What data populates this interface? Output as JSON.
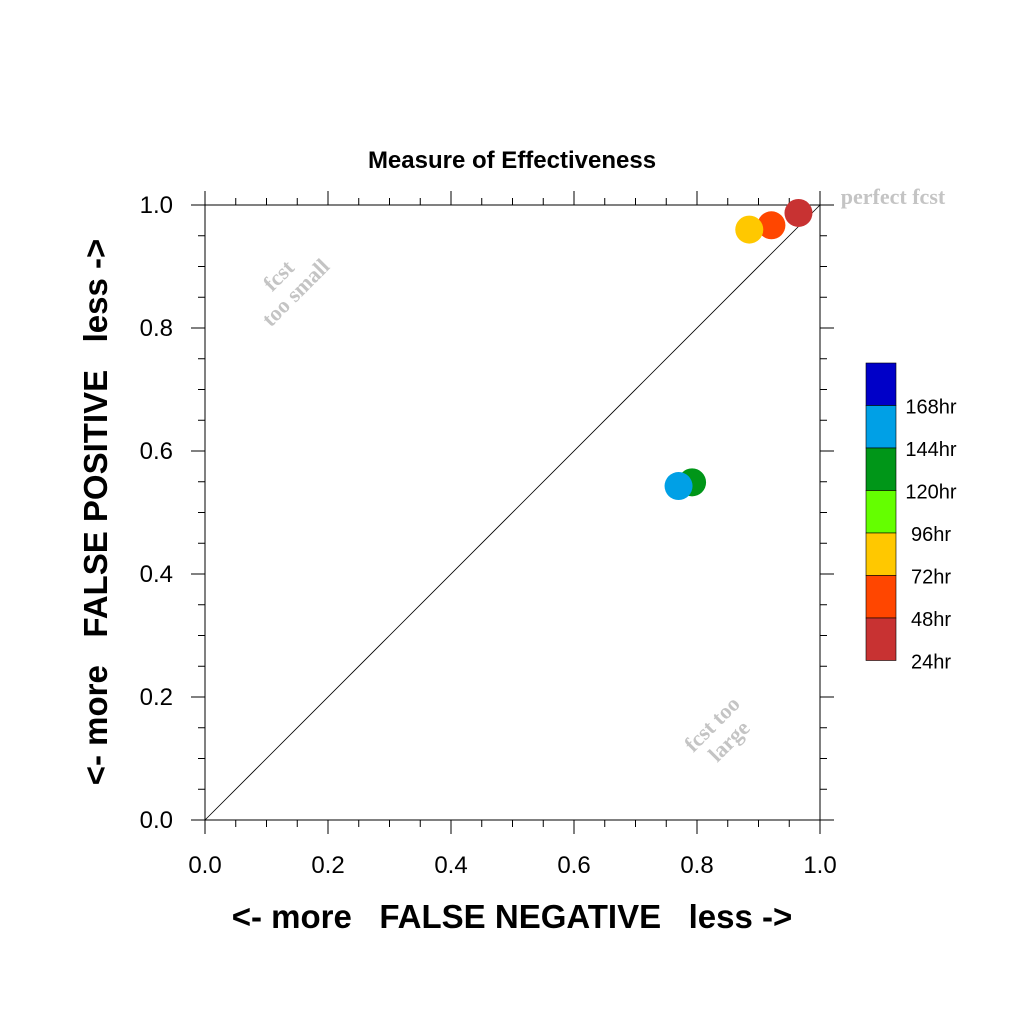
{
  "chart_data": {
    "type": "scatter",
    "title": "Measure of Effectiveness",
    "xlabel": "<- more   FALSE NEGATIVE   less ->",
    "ylabel": "<- more   FALSE POSITIVE   less ->",
    "xlim": [
      0.0,
      1.0
    ],
    "ylim": [
      0.0,
      1.0
    ],
    "x_ticks": [
      "0.0",
      "0.2",
      "0.4",
      "0.6",
      "0.8",
      "1.0"
    ],
    "y_ticks": [
      "0.0",
      "0.2",
      "0.4",
      "0.6",
      "0.8",
      "1.0"
    ],
    "grid": false,
    "reference_line": "diagonal",
    "annotations": {
      "perfect": "perfect fcst",
      "too_small_1": "fcst",
      "too_small_2": "too small",
      "too_large_1": "fcst too",
      "too_large_2": "large"
    },
    "legend": {
      "placement": "right",
      "entries": [
        {
          "label": "168hr",
          "color": "#0000c8"
        },
        {
          "label": "144hr",
          "color": "#00a0e6"
        },
        {
          "label": "120hr",
          "color": "#009618"
        },
        {
          "label": "96hr",
          "color": "#64ff00"
        },
        {
          "label": "72hr",
          "color": "#ffc800"
        },
        {
          "label": "48hr",
          "color": "#ff4600"
        },
        {
          "label": "24hr",
          "color": "#c83232"
        }
      ]
    },
    "points": [
      {
        "label": "24hr",
        "x": 0.965,
        "y": 0.987,
        "color": "#c83232"
      },
      {
        "label": "48hr",
        "x": 0.921,
        "y": 0.967,
        "color": "#ff4600"
      },
      {
        "label": "72hr",
        "x": 0.885,
        "y": 0.96,
        "color": "#ffc800"
      },
      {
        "label": "120hr",
        "x": 0.792,
        "y": 0.549,
        "color": "#009618"
      },
      {
        "label": "144hr",
        "x": 0.77,
        "y": 0.543,
        "color": "#00a0e6"
      }
    ]
  }
}
